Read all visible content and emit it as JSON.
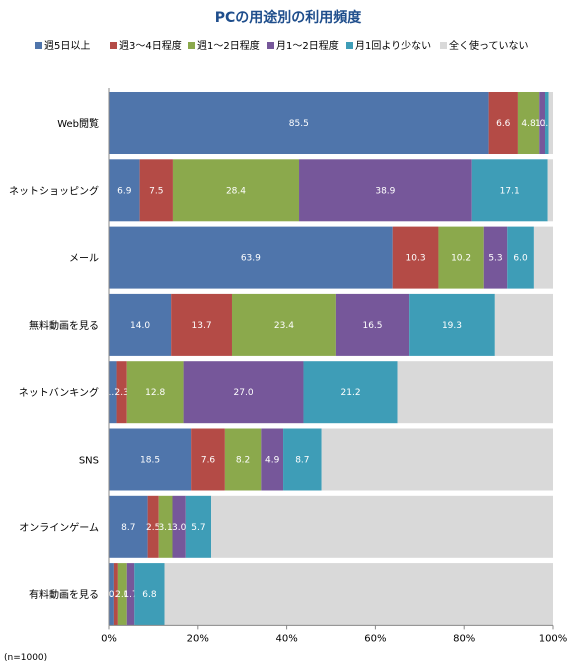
{
  "chart_data": {
    "type": "bar",
    "orientation": "horizontal",
    "stacked": true,
    "title": "PCの用途別の利用頻度",
    "note": "(n=1000)",
    "categories": [
      "Web閲覧",
      "ネットショッピング",
      "メール",
      "無料動画を見る",
      "ネットバンキング",
      "SNS",
      "オンラインゲーム",
      "有料動画を見る"
    ],
    "series": [
      {
        "name": "週5日以上",
        "color": "#4f75ab",
        "values": [
          85.5,
          6.9,
          63.9,
          14.0,
          1.7,
          18.5,
          8.7,
          1.1
        ]
      },
      {
        "name": "週3～4日程度",
        "color": "#b44b46",
        "values": [
          6.6,
          7.5,
          10.3,
          13.7,
          2.3,
          7.6,
          2.5,
          0.9
        ]
      },
      {
        "name": "週1～2日程度",
        "color": "#8ba94c",
        "values": [
          4.8,
          28.4,
          10.2,
          23.4,
          12.8,
          8.2,
          3.1,
          2.0
        ]
      },
      {
        "name": "月1～2日程度",
        "color": "#76579a",
        "values": [
          1.3,
          38.9,
          5.3,
          16.5,
          27.0,
          4.9,
          3.0,
          1.7
        ]
      },
      {
        "name": "月1回より少ない",
        "color": "#3e9db7",
        "values": [
          0.8,
          17.1,
          6.0,
          19.3,
          21.2,
          8.7,
          5.7,
          6.8
        ]
      },
      {
        "name": "全く使っていない",
        "color": "#d9d9d9",
        "values": [
          1.0,
          1.2,
          4.3,
          13.1,
          35.0,
          52.1,
          77.0,
          87.5
        ]
      }
    ],
    "data_labels": [
      [
        "85.5",
        "6.6",
        "4.8",
        "1.3",
        "0.8",
        ""
      ],
      [
        "6.9",
        "7.5",
        "28.4",
        "38.9",
        "17.1",
        ""
      ],
      [
        "63.9",
        "10.3",
        "10.2",
        "5.3",
        "6.0",
        ""
      ],
      [
        "14.0",
        "13.7",
        "23.4",
        "16.5",
        "19.3",
        ""
      ],
      [
        "1.7",
        "2.3",
        "12.8",
        "27.0",
        "21.2",
        ""
      ],
      [
        "18.5",
        "7.6",
        "8.2",
        "4.9",
        "8.7",
        ""
      ],
      [
        "8.7",
        "2.5",
        "3.1",
        "3.0",
        "5.7",
        ""
      ],
      [
        "1.1",
        "0.9",
        "2.0",
        "1.7",
        "6.8",
        ""
      ]
    ],
    "xlim": [
      0,
      100
    ],
    "xticks": [
      "0%",
      "20%",
      "40%",
      "60%",
      "80%",
      "100%"
    ],
    "legend_position": "top",
    "grid": false
  }
}
